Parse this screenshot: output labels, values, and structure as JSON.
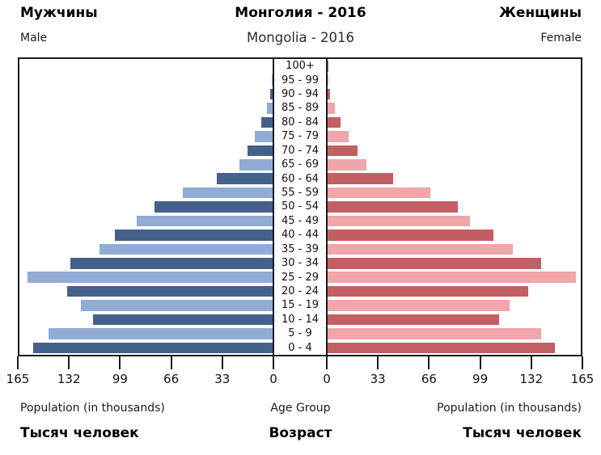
{
  "header": {
    "male_label_ru": "Мужчины",
    "title_ru": "Монголия - 2016",
    "female_label_ru": "Женщины",
    "male_label_en": "Male",
    "title_en": "Mongolia - 2016",
    "female_label_en": "Female"
  },
  "footer": {
    "population_label_en_left": "Population (in thousands)",
    "age_group_label_en": "Age Group",
    "population_label_en_right": "Population (in thousands)",
    "population_label_ru_left": "Тысяч человек",
    "age_group_label_ru": "Возраст",
    "population_label_ru_right": "Тысяч человек"
  },
  "chart_data": {
    "type": "bar",
    "subtype": "population_pyramid",
    "orientation": "horizontal",
    "title": "Монголия - 2016",
    "subtitle": "Mongolia - 2016",
    "xlabel": "Population (in thousands)",
    "ylabel": "Age Group",
    "xlim": [
      0,
      165
    ],
    "x_ticks": [
      0,
      33,
      66,
      99,
      132,
      165
    ],
    "grid": false,
    "legend": "none",
    "categories_order": "top-to-bottom",
    "categories": [
      "100+",
      "95 - 99",
      "90 - 94",
      "85 - 89",
      "80 - 84",
      "75 - 79",
      "70 - 74",
      "65 - 69",
      "60 - 64",
      "55 - 59",
      "50 - 54",
      "45 - 49",
      "40 - 44",
      "35 - 39",
      "30 - 34",
      "25 - 29",
      "20 - 24",
      "15 - 19",
      "10 - 14",
      "5 - 9",
      "0 - 4"
    ],
    "series": [
      {
        "name": "Male",
        "side": "left",
        "values": [
          0.5,
          1,
          2,
          4,
          8,
          12,
          17,
          22,
          37,
          59,
          77,
          89,
          103,
          113,
          132,
          160,
          134,
          125,
          117,
          146,
          156
        ]
      },
      {
        "name": "Female",
        "side": "right",
        "values": [
          0.5,
          1,
          2,
          5,
          9,
          14,
          20,
          26,
          43,
          67,
          85,
          93,
          108,
          121,
          139,
          162,
          131,
          119,
          112,
          139,
          148
        ]
      }
    ],
    "colors": {
      "male_dark": "#44618b",
      "male_light": "#90acd4",
      "female_dark": "#c25f63",
      "female_light": "#f0a6aa",
      "axis": "#1a1a1a"
    },
    "units": "thousands of people"
  }
}
